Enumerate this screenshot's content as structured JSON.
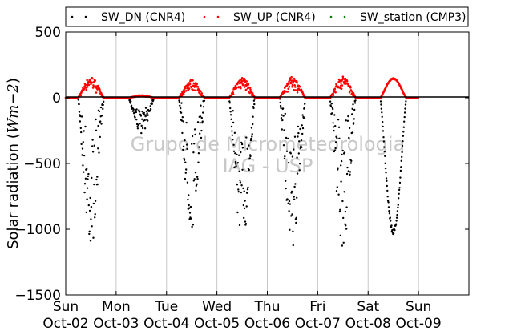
{
  "watermark": [
    "Grupo de Micrometeorologia",
    "IAG - USP"
  ],
  "legend_position": "top-right",
  "chart_data": {
    "type": "scatter",
    "ylabel_text": "Solar radiation (",
    "ylabel_math": "Wm−2",
    "ylabel_close": ")",
    "xlabel": "",
    "ylim": [
      -1500,
      500
    ],
    "yticks": [
      500,
      0,
      -500,
      -1000,
      -1500
    ],
    "ytick_labels": [
      "500",
      "0",
      "−500",
      "−1000",
      "−1500"
    ],
    "xlim": [
      "Oct-02 00:00",
      "Oct-10 00:00"
    ],
    "xticks": [
      {
        "day": "Sun",
        "date": "Oct-02"
      },
      {
        "day": "Mon",
        "date": "Oct-03"
      },
      {
        "day": "Tue",
        "date": "Oct-04"
      },
      {
        "day": "Wed",
        "date": "Oct-05"
      },
      {
        "day": "Thu",
        "date": "Oct-06"
      },
      {
        "day": "Fri",
        "date": "Oct-07"
      },
      {
        "day": "Sat",
        "date": "Oct-08"
      },
      {
        "day": "Sun",
        "date": "Oct-09"
      }
    ],
    "grid": "vertical",
    "series": [
      {
        "name": "SW_DN (CNR4)",
        "color": "#000000",
        "daily_minimum": [
          -1130,
          -270,
          -1010,
          -1110,
          -1130,
          -1150,
          -1040
        ]
      },
      {
        "name": "SW_UP (CNR4)",
        "color": "#ff0000",
        "daily_peak": [
          160,
          20,
          140,
          160,
          160,
          165,
          150
        ]
      },
      {
        "name": "SW_station (CMP3)",
        "color": "#008000",
        "daily_peak": []
      }
    ]
  }
}
